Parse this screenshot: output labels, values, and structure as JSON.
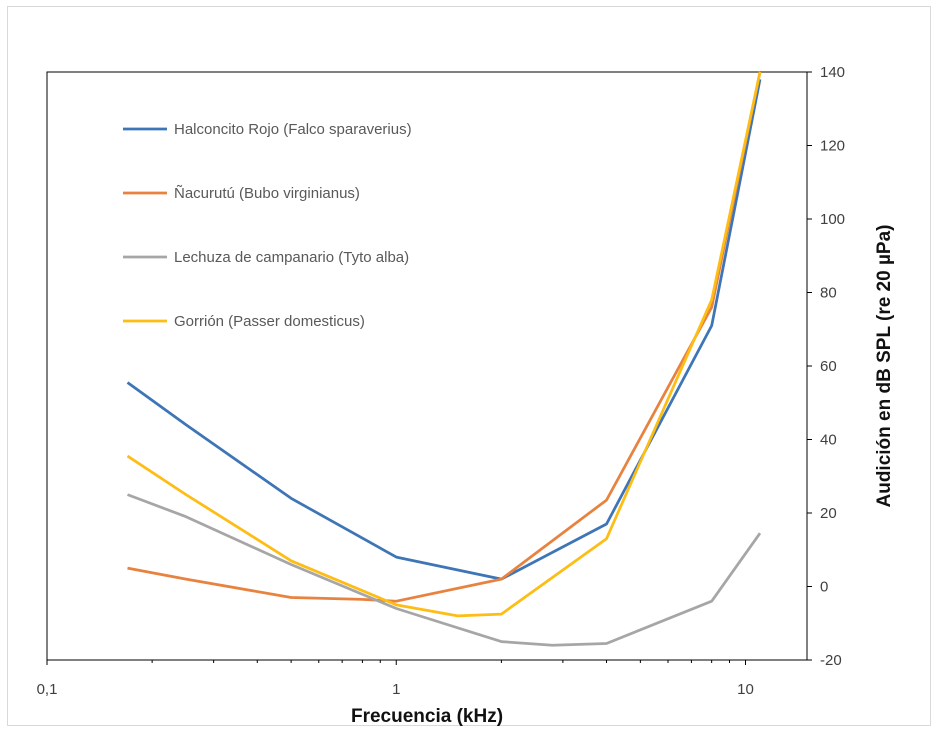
{
  "chart_data": {
    "type": "line",
    "xscale": "log",
    "xlabel": "Frecuencia (kHz)",
    "ylabel": "Audición en dB SPL (re 20 µPa)",
    "xlim": [
      0.1,
      15
    ],
    "ylim": [
      -20,
      140
    ],
    "x_ticks": [
      0.1,
      1,
      10
    ],
    "x_tick_labels": [
      "0,1",
      "1",
      "10"
    ],
    "y_ticks": [
      -20,
      0,
      20,
      40,
      60,
      80,
      100,
      120,
      140
    ],
    "y_tick_labels": [
      "-20",
      "0",
      "20",
      "40",
      "60",
      "80",
      "100",
      "120",
      "140"
    ],
    "y_axis_side": "right",
    "grid": false,
    "legend_position": "top-left",
    "series": [
      {
        "name": "Halconcito Rojo (Falco sparaverius)",
        "color": "#3e75b6",
        "points": [
          [
            0.17,
            55.5
          ],
          [
            0.25,
            44
          ],
          [
            0.5,
            24
          ],
          [
            1,
            8
          ],
          [
            2,
            2
          ],
          [
            4,
            17
          ],
          [
            8,
            71
          ],
          [
            11,
            138
          ]
        ]
      },
      {
        "name": "Ñacurutú (Bubo virginianus)",
        "color": "#e8823f",
        "points": [
          [
            0.17,
            5
          ],
          [
            0.25,
            2
          ],
          [
            0.5,
            -3
          ],
          [
            0.8,
            -3.5
          ],
          [
            1,
            -4
          ],
          [
            2,
            2
          ],
          [
            4,
            23.5
          ],
          [
            8,
            76
          ],
          [
            11,
            140
          ]
        ]
      },
      {
        "name": "Lechuza de campanario (Tyto alba)",
        "color": "#a6a6a6",
        "points": [
          [
            0.17,
            25
          ],
          [
            0.25,
            19
          ],
          [
            0.5,
            6
          ],
          [
            1,
            -6
          ],
          [
            2,
            -15
          ],
          [
            2.8,
            -16
          ],
          [
            4,
            -15.5
          ],
          [
            8,
            -4
          ],
          [
            11,
            14.5
          ]
        ]
      },
      {
        "name": "Gorrión (Passer domesticus)",
        "color": "#fdbd14",
        "points": [
          [
            0.17,
            35.5
          ],
          [
            0.25,
            25
          ],
          [
            0.5,
            7
          ],
          [
            1,
            -5
          ],
          [
            1.5,
            -8
          ],
          [
            2,
            -7.5
          ],
          [
            4,
            13
          ],
          [
            8,
            78
          ],
          [
            11,
            140
          ]
        ]
      }
    ]
  }
}
